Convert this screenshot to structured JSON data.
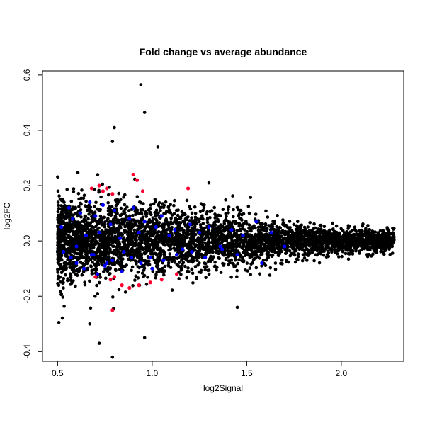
{
  "chart_data": {
    "type": "scatter",
    "title": "Fold change vs average abundance",
    "xlabel": "log2Signal",
    "ylabel": "log2FC",
    "xlim": [
      0.42,
      2.33
    ],
    "ylim": [
      -0.435,
      0.615
    ],
    "x_ticks": [
      0.5,
      1.0,
      1.5,
      2.0
    ],
    "x_tick_labels": [
      "0.5",
      "1.0",
      "1.5",
      "2.0"
    ],
    "y_ticks": [
      -0.4,
      -0.2,
      0.0,
      0.2,
      0.4,
      0.6
    ],
    "y_tick_labels": [
      "-0.4",
      "-0.2",
      "0.0",
      "0.2",
      "0.4",
      "0.6"
    ],
    "grid": false,
    "legend": "none",
    "point_colors": {
      "background": "#000000",
      "blue": "#0000ff",
      "red": "#ff0033"
    },
    "series": [
      {
        "color": "#0000ff",
        "x": [
          0.52,
          0.56,
          0.58,
          0.6,
          0.62,
          0.65,
          0.67,
          0.69,
          0.7,
          0.72,
          0.74,
          0.76,
          0.78,
          0.8,
          0.83,
          0.85,
          0.88,
          0.9,
          0.93,
          0.96,
          0.99,
          1.02,
          1.05,
          1.09,
          1.12,
          1.16,
          1.2,
          1.25,
          1.3,
          1.36,
          1.42,
          1.48,
          1.55,
          1.63,
          1.7,
          0.53,
          0.57,
          0.6,
          0.64,
          0.68,
          0.71,
          0.75,
          0.79,
          0.84,
          0.89,
          0.94,
          1.0,
          1.06,
          1.13,
          1.21,
          1.28,
          1.37,
          1.45,
          1.58
        ],
        "y": [
          0.05,
          0.12,
          0.08,
          -0.02,
          0.1,
          0.02,
          0.14,
          -0.05,
          0.09,
          0.03,
          0.13,
          -0.08,
          0.06,
          0.11,
          0.01,
          -0.04,
          0.08,
          0.12,
          0.03,
          0.07,
          -0.06,
          0.05,
          0.09,
          0.02,
          0.04,
          -0.03,
          0.06,
          0.03,
          0.05,
          -0.02,
          0.04,
          0.02,
          0.07,
          0.03,
          -0.02,
          -0.04,
          -0.06,
          -0.08,
          -0.1,
          -0.05,
          -0.12,
          -0.09,
          -0.07,
          -0.11,
          -0.06,
          -0.08,
          -0.1,
          -0.07,
          -0.05,
          -0.04,
          -0.06,
          -0.03,
          -0.05,
          -0.08
        ]
      },
      {
        "color": "#ff0033",
        "x": [
          0.68,
          0.72,
          0.74,
          0.76,
          0.79,
          0.9,
          0.92,
          0.95,
          1.19,
          0.7,
          0.78,
          0.8,
          0.84,
          0.88,
          0.93,
          0.99,
          1.05,
          1.13,
          0.79
        ],
        "y": [
          0.19,
          0.2,
          0.18,
          0.19,
          0.17,
          0.24,
          0.22,
          0.18,
          0.19,
          -0.13,
          -0.14,
          -0.13,
          -0.16,
          -0.17,
          -0.16,
          -0.15,
          -0.14,
          -0.12,
          -0.25
        ]
      }
    ]
  }
}
